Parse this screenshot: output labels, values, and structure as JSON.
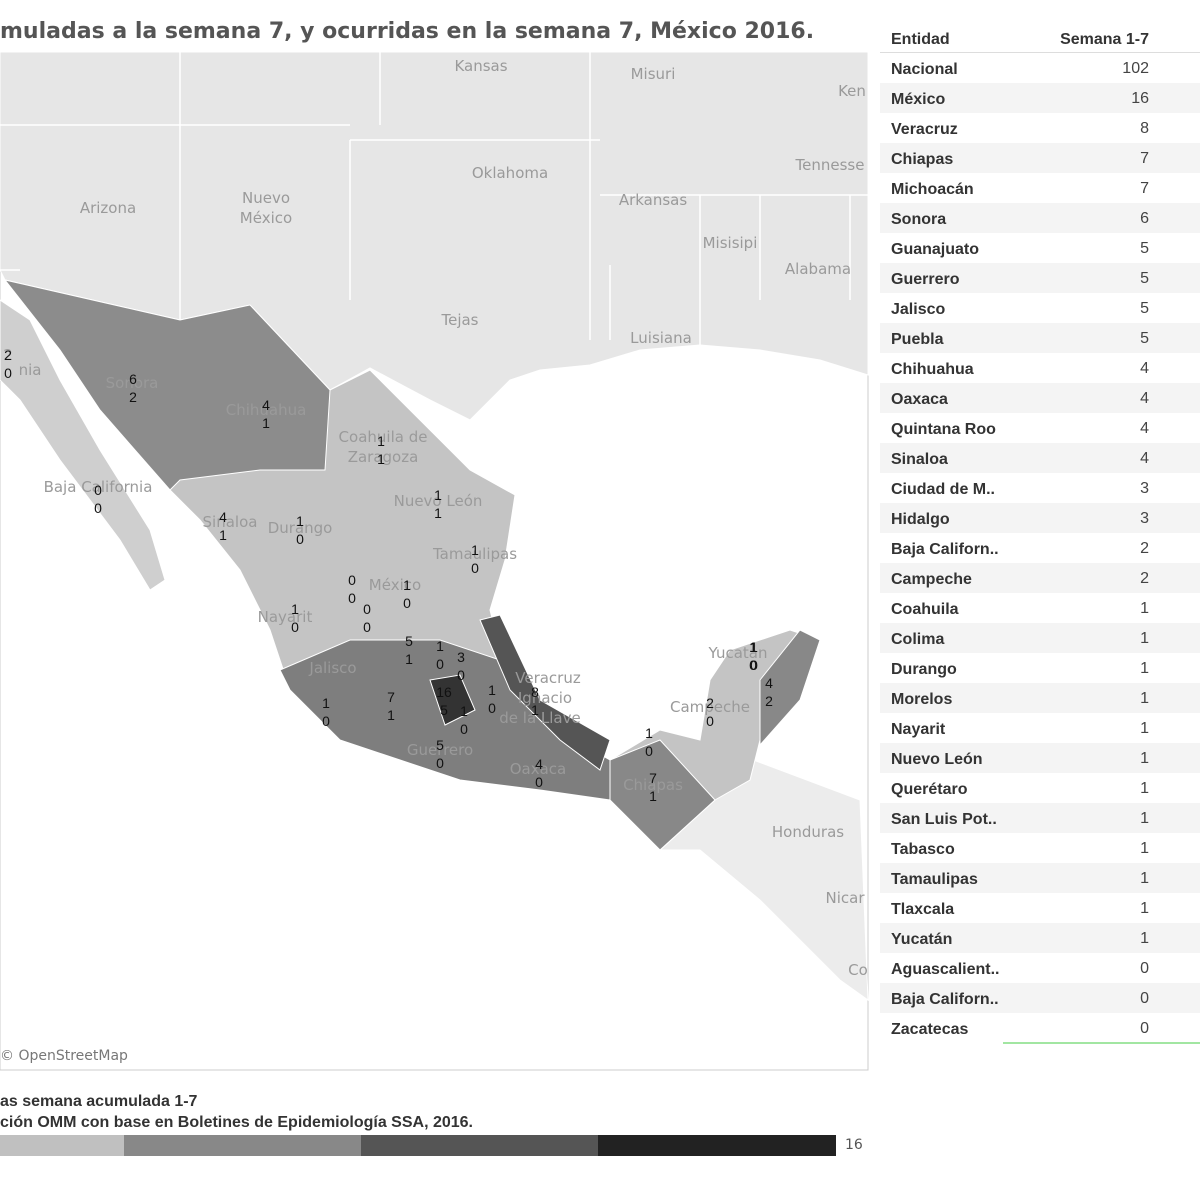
{
  "header": {
    "title": "muladas a la semana 7, y ocurridas en la semana 7, México 2016."
  },
  "map": {
    "labels": [
      "Kansas",
      "Misuri",
      "Ken",
      "Oklahoma",
      "Tennesse",
      "Arizona",
      "Nuevo",
      "México",
      "Arkansas",
      "Misisipi",
      "Alabama",
      "Tejas",
      "Luisiana",
      "Sonora",
      "Chihuahua",
      "Coahuila de",
      "Zaragoza",
      "Nuevo León",
      "Tamaulipas",
      "Durango",
      "México",
      "Baja California",
      "Sinaloa",
      "Nayarit",
      "Jalisco",
      "Guerrero",
      "Oaxaca",
      "Veracruz",
      "Ignacio",
      "de la Llave",
      "Campeche",
      "Yucatán",
      "Chiapas",
      "Honduras",
      "Nicar",
      "Co",
      "nia",
      "2"
    ],
    "counts": [
      [
        2,
        0
      ],
      [
        6,
        2
      ],
      [
        4,
        1
      ],
      [
        0,
        0
      ],
      [
        1,
        1
      ],
      [
        1,
        1
      ],
      [
        4,
        1
      ],
      [
        1,
        0
      ],
      [
        1,
        0
      ],
      [
        0,
        0
      ],
      [
        1,
        0
      ],
      [
        0,
        0
      ],
      [
        1,
        0
      ],
      [
        1,
        0
      ],
      [
        5,
        1
      ],
      [
        1,
        0
      ],
      [
        3,
        0
      ],
      [
        7,
        1
      ],
      [
        16,
        5
      ],
      [
        1,
        0
      ],
      [
        1,
        0
      ],
      [
        8,
        1
      ],
      [
        1,
        0
      ],
      [
        5,
        0
      ],
      [
        4,
        0
      ],
      [
        1,
        0
      ],
      [
        2,
        0
      ],
      [
        1,
        0
      ],
      [
        4,
        2
      ],
      [
        7,
        1
      ]
    ],
    "credit": "© OpenStreetMap"
  },
  "table": {
    "header": [
      "Entidad",
      "Semana 1-7"
    ],
    "rows": [
      [
        "Nacional",
        102
      ],
      [
        "México",
        16
      ],
      [
        "Veracruz",
        8
      ],
      [
        "Chiapas",
        7
      ],
      [
        "Michoacán",
        7
      ],
      [
        "Sonora",
        6
      ],
      [
        "Guanajuato",
        5
      ],
      [
        "Guerrero",
        5
      ],
      [
        "Jalisco",
        5
      ],
      [
        "Puebla",
        5
      ],
      [
        "Chihuahua",
        4
      ],
      [
        "Oaxaca",
        4
      ],
      [
        "Quintana Roo",
        4
      ],
      [
        "Sinaloa",
        4
      ],
      [
        "Ciudad de M..",
        3
      ],
      [
        "Hidalgo",
        3
      ],
      [
        "Baja Californ..",
        2
      ],
      [
        "Campeche",
        2
      ],
      [
        "Coahuila",
        1
      ],
      [
        "Colima",
        1
      ],
      [
        "Durango",
        1
      ],
      [
        "Morelos",
        1
      ],
      [
        "Nayarit",
        1
      ],
      [
        "Nuevo León",
        1
      ],
      [
        "Querétaro",
        1
      ],
      [
        "San Luis Pot..",
        1
      ],
      [
        "Tabasco",
        1
      ],
      [
        "Tamaulipas",
        1
      ],
      [
        "Tlaxcala",
        1
      ],
      [
        "Yucatán",
        1
      ],
      [
        "Aguascalient..",
        0
      ],
      [
        "Baja Californ..",
        0
      ],
      [
        "Zacatecas",
        0
      ]
    ]
  },
  "footer": {
    "line1": "as semana acumulada 1-7",
    "line2": "ción OMM con base en Boletines de Epidemiología SSA, 2016.",
    "legend_max": 16
  }
}
